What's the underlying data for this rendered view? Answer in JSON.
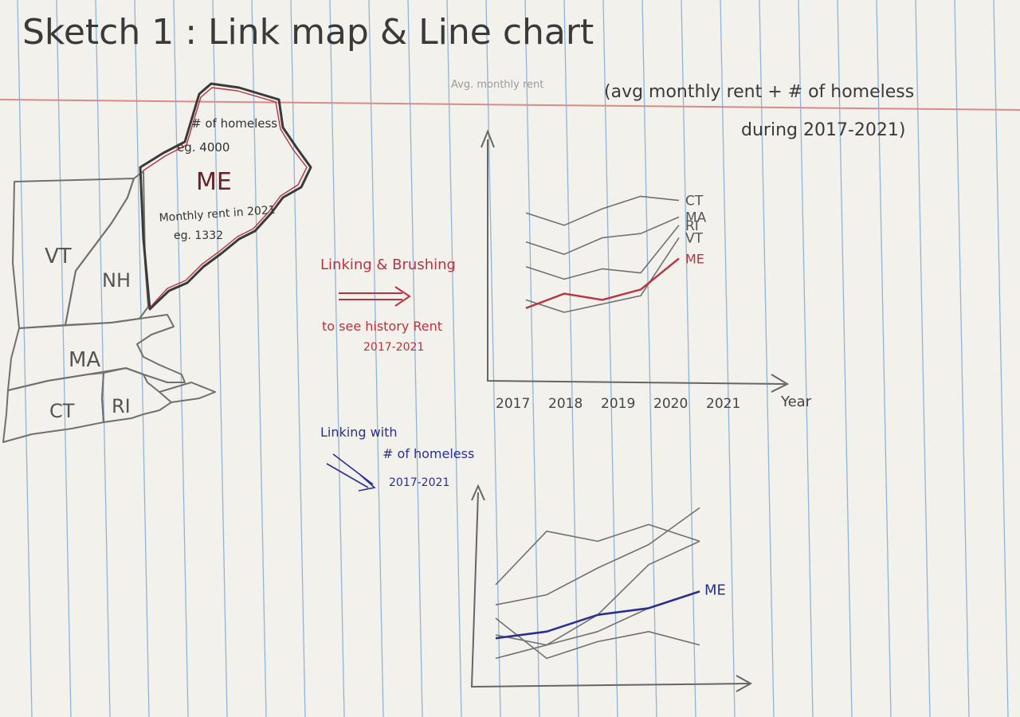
{
  "title": "Sketch 1 : Link map & Line chart",
  "subtitle_line1": "(avg monthly rent + # of homeless",
  "subtitle_line2": "during 2017-2021)",
  "map": {
    "states": [
      "VT",
      "NH",
      "ME",
      "MA",
      "CT",
      "RI"
    ],
    "tooltip": {
      "line1": "# of homeless",
      "line2": "eg. 4000",
      "line3": "Monthly rent in 2021",
      "line4": "eg. 1332"
    }
  },
  "annotations": {
    "linking_brushing": "Linking & Brushing",
    "see_history_line1": "to see history Rent",
    "see_history_line2": "2017-2021",
    "linking_with_line1": "Linking with",
    "linking_with_line2": "# of homeless",
    "linking_with_line3": "2017-2021"
  },
  "colors": {
    "paper": "#f3f1ec",
    "rule_blue": "#8fb4d9",
    "margin_red": "#d98a8a",
    "ink": "#3a3a3a",
    "pencil": "#707070",
    "red_ink": "#b8323f",
    "blue_ink": "#2b2f8f"
  },
  "chart_data": [
    {
      "type": "line",
      "ylabel": "Avg. monthly rent",
      "xlabel": "Year",
      "x": [
        2017,
        2018,
        2019,
        2020,
        2021
      ],
      "series": [
        {
          "name": "CT",
          "values": [
            7.8,
            7.2,
            8.0,
            8.6,
            8.4
          ]
        },
        {
          "name": "MA",
          "values": [
            6.4,
            5.8,
            6.6,
            6.8,
            7.6
          ]
        },
        {
          "name": "RI",
          "values": [
            5.2,
            4.6,
            5.1,
            4.9,
            7.2
          ]
        },
        {
          "name": "VT",
          "values": [
            3.6,
            3.0,
            3.4,
            3.8,
            6.6
          ]
        },
        {
          "name": "ME",
          "values": [
            3.2,
            3.9,
            3.6,
            4.1,
            5.6
          ]
        }
      ]
    },
    {
      "type": "line",
      "series": [
        {
          "values": [
            6.0,
            9.2,
            8.6,
            9.6,
            8.6
          ]
        },
        {
          "values": [
            4.8,
            5.4,
            7.0,
            8.4,
            10.6
          ]
        },
        {
          "values": [
            3.0,
            2.4,
            4.2,
            7.2,
            8.6
          ]
        },
        {
          "values": [
            1.6,
            2.4,
            3.2,
            4.6,
            5.6
          ]
        },
        {
          "values": [
            4.0,
            1.6,
            2.6,
            3.2,
            2.4
          ]
        },
        {
          "name": "ME",
          "values": [
            2.8,
            3.2,
            4.2,
            4.6,
            5.6
          ]
        }
      ]
    }
  ]
}
